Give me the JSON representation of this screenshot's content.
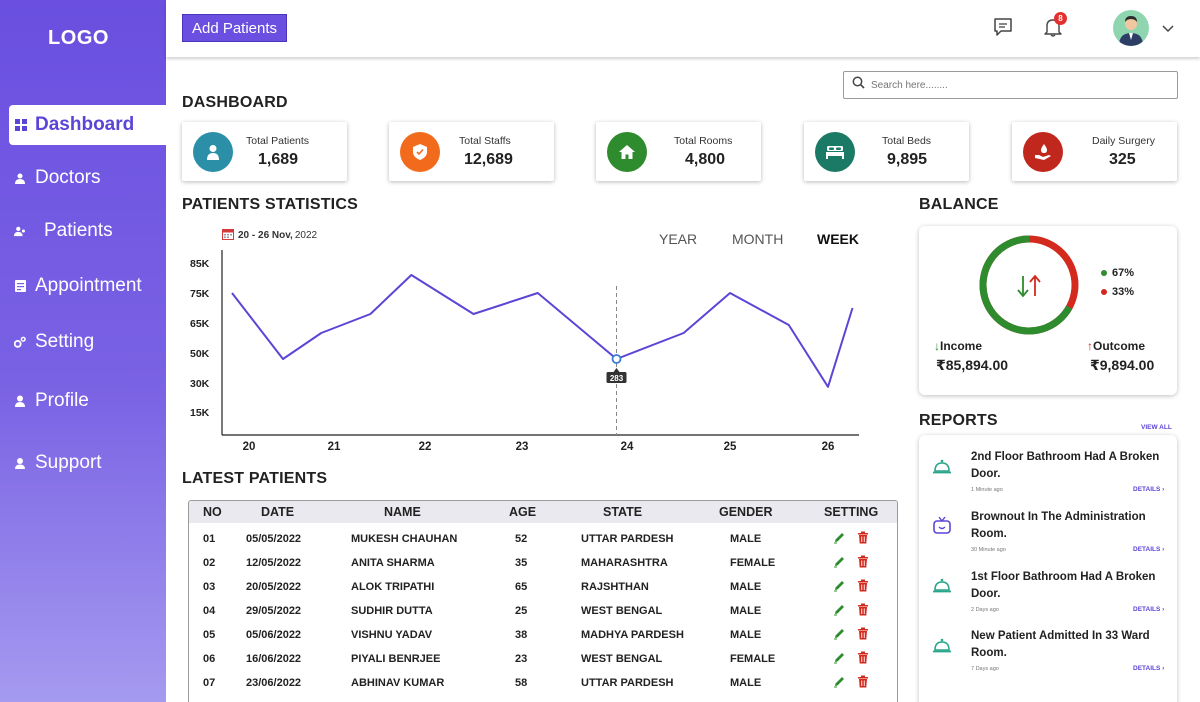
{
  "sidebar": {
    "logo": "LOGO",
    "items": [
      {
        "label": "Dashboard",
        "icon": "grid-icon"
      },
      {
        "label": "Doctors",
        "icon": "user-icon"
      },
      {
        "label": "Patients",
        "icon": "users-icon"
      },
      {
        "label": "Appointment",
        "icon": "clipboard-icon"
      },
      {
        "label": "Setting",
        "icon": "gear-icon"
      },
      {
        "label": "Profile",
        "icon": "person-icon"
      },
      {
        "label": "Support",
        "icon": "support-icon"
      }
    ]
  },
  "topbar": {
    "add_button": "Add Patients",
    "notification_count": "8"
  },
  "search": {
    "placeholder": "Search here........"
  },
  "dashboard": {
    "title": "DASHBOARD",
    "cards": [
      {
        "label": "Total Patients",
        "value": "1,689",
        "color": "#2b8fa8"
      },
      {
        "label": "Total Staffs",
        "value": "12,689",
        "color": "#f26a1b"
      },
      {
        "label": "Total Rooms",
        "value": "4,800",
        "color": "#2e8b2e"
      },
      {
        "label": "Total Beds",
        "value": "9,895",
        "color": "#1b7a66"
      },
      {
        "label": "Daily Surgery",
        "value": "325",
        "color": "#c0281e"
      }
    ]
  },
  "patients_statistics": {
    "title": "PATIENTS STATISTICS",
    "range_bold": "20 - 26 Nov,",
    "range_year": "2022",
    "periods": [
      "YEAR",
      "MONTH",
      "WEEK"
    ],
    "active_period": "WEEK",
    "tooltip": "283"
  },
  "chart_data": {
    "type": "line",
    "x_ticks": [
      "20",
      "21",
      "22",
      "23",
      "24",
      "25",
      "26"
    ],
    "y_ticks": [
      "85K",
      "75K",
      "65K",
      "50K",
      "30K",
      "15K"
    ],
    "series": [
      {
        "x": [
          19.8,
          20.4,
          20.85,
          21.4,
          21.85,
          22.5,
          23.15,
          23.9,
          24.55,
          25.0,
          25.6,
          26.0,
          26.25
        ],
        "values": [
          75,
          46,
          60,
          68,
          81,
          68,
          75,
          46,
          60,
          75,
          64,
          28,
          70
        ]
      }
    ],
    "highlight": {
      "x": 23.9,
      "value": 46,
      "label": "283"
    },
    "color": "#5b45d6"
  },
  "latest_patients": {
    "title": "LATEST PATIENTS",
    "columns": [
      "NO",
      "DATE",
      "NAME",
      "AGE",
      "STATE",
      "GENDER",
      "SETTING"
    ],
    "rows": [
      [
        "01",
        "05/05/2022",
        "MUKESH CHAUHAN",
        "52",
        "UTTAR PARDESH",
        "MALE"
      ],
      [
        "02",
        "12/05/2022",
        "ANITA SHARMA",
        "35",
        "MAHARASHTRA",
        "FEMALE"
      ],
      [
        "03",
        "20/05/2022",
        "ALOK TRIPATHI",
        "65",
        "RAJSHTHAN",
        "MALE"
      ],
      [
        "04",
        "29/05/2022",
        "SUDHIR DUTTA",
        "25",
        "WEST BENGAL",
        "MALE"
      ],
      [
        "05",
        "05/06/2022",
        "VISHNU YADAV",
        "38",
        "MADHYA PARDESH",
        "MALE"
      ],
      [
        "06",
        "16/06/2022",
        "PIYALI BENRJEE",
        "23",
        "WEST BENGAL",
        "FEMALE"
      ],
      [
        "07",
        "23/06/2022",
        "ABHINAV KUMAR",
        "58",
        "UTTAR PARDESH",
        "MALE"
      ]
    ]
  },
  "balance": {
    "title": "BALANCE",
    "income_pct": "67%",
    "outcome_pct": "33%",
    "income_share": 0.67,
    "income_label": "Income",
    "outcome_label": "Outcome",
    "income_value": "₹85,894.00",
    "outcome_value": "₹9,894.00",
    "income_color": "#2e8b2e",
    "outcome_color": "#d42a1e"
  },
  "reports": {
    "title": "REPORTS",
    "view_all": "VIEW ALL",
    "items": [
      {
        "title": "2nd Floor Bathroom Had A Broken Door.",
        "time": "1 Minute ago",
        "details": "DETAILS ›",
        "icon": "bell-icon"
      },
      {
        "title": "Brownout In The Administration Room.",
        "time": "30 Minute ago",
        "details": "DETAILS ›",
        "icon": "tv-icon"
      },
      {
        "title": "1st Floor Bathroom Had A Broken Door.",
        "time": "2 Days ago",
        "details": "DETAILS ›",
        "icon": "bell-icon"
      },
      {
        "title": "New Patient Admitted In 33 Ward Room.",
        "time": "7 Days ago",
        "details": "DETAILS ›",
        "icon": "bell-icon"
      }
    ]
  }
}
